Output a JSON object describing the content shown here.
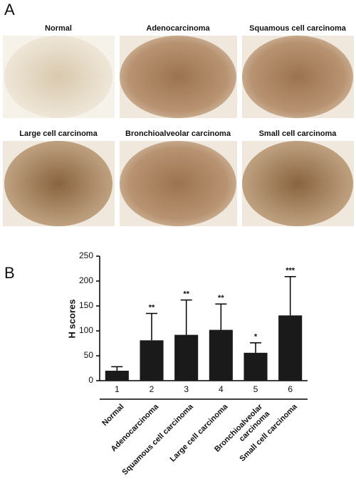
{
  "panel_labels": [
    "A",
    "B"
  ],
  "images": [
    {
      "label": "Normal"
    },
    {
      "label": "Adenocarcinoma"
    },
    {
      "label": "Squamous cell carcinoma"
    },
    {
      "label": "Large cell carcinoma"
    },
    {
      "label": "Bronchioalveolar carcinoma"
    },
    {
      "label": "Small cell carcinoma"
    }
  ],
  "chart_data": {
    "type": "bar",
    "ylabel": "H scores",
    "categories": [
      "1",
      "2",
      "3",
      "4",
      "5",
      "6"
    ],
    "group_labels": [
      "Normal",
      "Adenocarcinoma",
      "Squamous cell carcinoma",
      "Large cell carcinoma",
      [
        "Bronchioalveolar",
        "carcinoma"
      ],
      "Small cell carcinoma"
    ],
    "values": [
      20,
      81,
      92,
      102,
      56,
      131
    ],
    "errors": [
      8,
      54,
      70,
      52,
      20,
      78
    ],
    "annotations": [
      null,
      "**",
      "**",
      "**",
      "*",
      "***"
    ],
    "color": "#1a1a1a",
    "ylim": [
      0,
      250
    ],
    "yticks": [
      0,
      50,
      100,
      150,
      200,
      250
    ]
  }
}
